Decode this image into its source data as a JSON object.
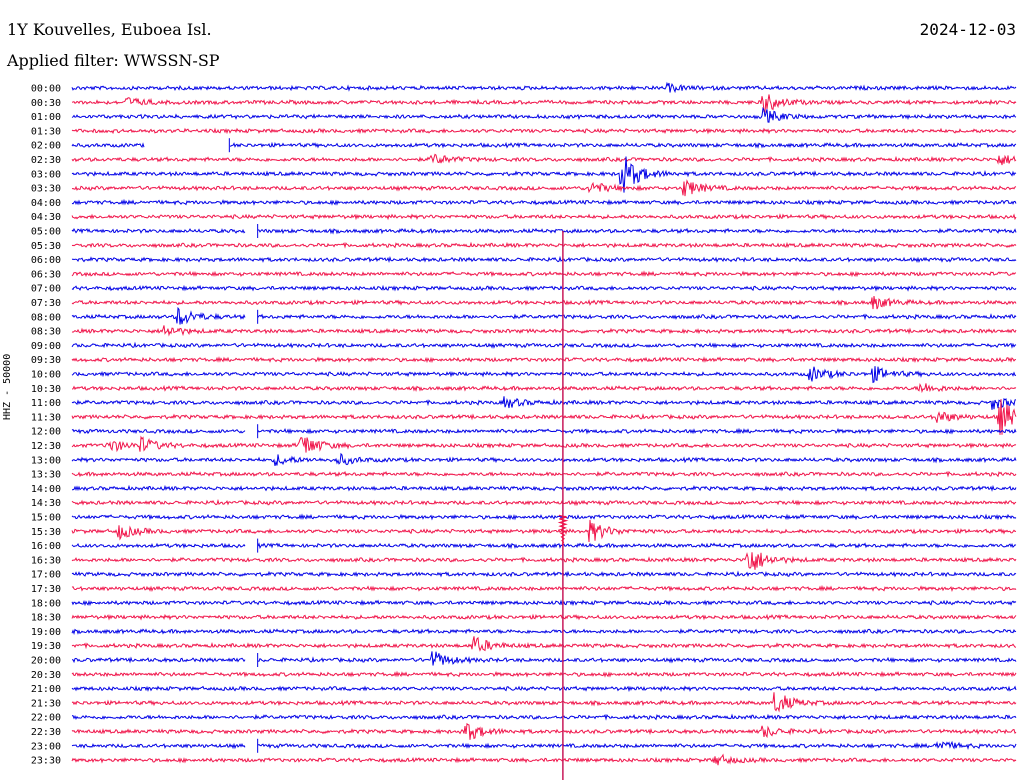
{
  "header": {
    "title": "1Y Kouvelles, Euboea Isl.",
    "date": "2024-12-03",
    "filter": "Applied filter: WWSSN-SP"
  },
  "chart_data": {
    "type": "line",
    "title": "1Y Kouvelles, Euboea Isl.",
    "subtitle": "Applied filter: WWSSN-SP",
    "ylabel": "HHZ - 50000",
    "xlabel": "",
    "grid": false,
    "colors": [
      "#0000e6",
      "#f0144a"
    ],
    "row_labels": [
      "00:00",
      "00:30",
      "01:00",
      "01:30",
      "02:00",
      "02:30",
      "03:00",
      "03:30",
      "04:00",
      "04:30",
      "05:00",
      "05:30",
      "06:00",
      "06:30",
      "07:00",
      "07:30",
      "08:00",
      "08:30",
      "09:00",
      "09:30",
      "10:00",
      "10:30",
      "11:00",
      "11:30",
      "12:00",
      "12:30",
      "13:00",
      "13:30",
      "14:00",
      "14:30",
      "15:00",
      "15:30",
      "16:00",
      "16:30",
      "17:00",
      "17:30",
      "18:00",
      "18:30",
      "19:00",
      "19:30",
      "20:00",
      "20:30",
      "21:00",
      "21:30",
      "22:00",
      "22:30",
      "23:00",
      "23:30"
    ],
    "minutes_per_row": 30,
    "events": [
      {
        "row": 0,
        "minute": 19.0,
        "amp": 3
      },
      {
        "row": 1,
        "minute": 1.8,
        "amp": 4
      },
      {
        "row": 1,
        "minute": 22.0,
        "amp": 10
      },
      {
        "row": 2,
        "minute": 22.0,
        "amp": 7
      },
      {
        "row": 5,
        "minute": 11.5,
        "amp": 5
      },
      {
        "row": 5,
        "minute": 29.5,
        "amp": 5
      },
      {
        "row": 6,
        "minute": 17.5,
        "amp": 20
      },
      {
        "row": 7,
        "minute": 16.5,
        "amp": 6
      },
      {
        "row": 7,
        "minute": 19.5,
        "amp": 8
      },
      {
        "row": 15,
        "minute": 25.5,
        "amp": 6
      },
      {
        "row": 16,
        "minute": 3.4,
        "amp": 9
      },
      {
        "row": 17,
        "minute": 2.9,
        "amp": 6
      },
      {
        "row": 20,
        "minute": 23.5,
        "amp": 7
      },
      {
        "row": 20,
        "minute": 25.5,
        "amp": 7
      },
      {
        "row": 21,
        "minute": 27.0,
        "amp": 5
      },
      {
        "row": 22,
        "minute": 13.8,
        "amp": 5
      },
      {
        "row": 22,
        "minute": 29.3,
        "amp": 6
      },
      {
        "row": 23,
        "minute": 27.5,
        "amp": 6
      },
      {
        "row": 23,
        "minute": 29.5,
        "amp": 18
      },
      {
        "row": 25,
        "minute": 1.2,
        "amp": 6
      },
      {
        "row": 25,
        "minute": 2.2,
        "amp": 7
      },
      {
        "row": 25,
        "minute": 7.3,
        "amp": 12
      },
      {
        "row": 26,
        "minute": 6.5,
        "amp": 5
      },
      {
        "row": 26,
        "minute": 8.5,
        "amp": 5
      },
      {
        "row": 31,
        "minute": 1.5,
        "amp": 7
      },
      {
        "row": 31,
        "minute": 16.5,
        "amp": 10
      },
      {
        "row": 33,
        "minute": 21.5,
        "amp": 15
      },
      {
        "row": 39,
        "minute": 12.8,
        "amp": 8
      },
      {
        "row": 40,
        "minute": 11.5,
        "amp": 8
      },
      {
        "row": 43,
        "minute": 22.4,
        "amp": 10
      },
      {
        "row": 45,
        "minute": 12.5,
        "amp": 10
      },
      {
        "row": 45,
        "minute": 22.0,
        "amp": 5
      },
      {
        "row": 46,
        "minute": 27.5,
        "amp": 5
      },
      {
        "row": 47,
        "minute": 20.5,
        "amp": 5
      }
    ],
    "teleseism": {
      "start_row": 10,
      "end_row": 47,
      "minute": 15.6,
      "peak_row": 31
    },
    "gaps": [
      {
        "row": 4,
        "start_minute": 2.3,
        "end_minute": 5.0
      },
      {
        "row": 10,
        "start_minute": 5.5,
        "end_minute": 5.9
      },
      {
        "row": 16,
        "start_minute": 5.5,
        "end_minute": 5.9
      },
      {
        "row": 24,
        "start_minute": 5.5,
        "end_minute": 5.9
      },
      {
        "row": 32,
        "start_minute": 5.5,
        "end_minute": 5.9
      },
      {
        "row": 40,
        "start_minute": 5.5,
        "end_minute": 5.9
      },
      {
        "row": 46,
        "start_minute": 5.5,
        "end_minute": 5.9
      }
    ]
  }
}
